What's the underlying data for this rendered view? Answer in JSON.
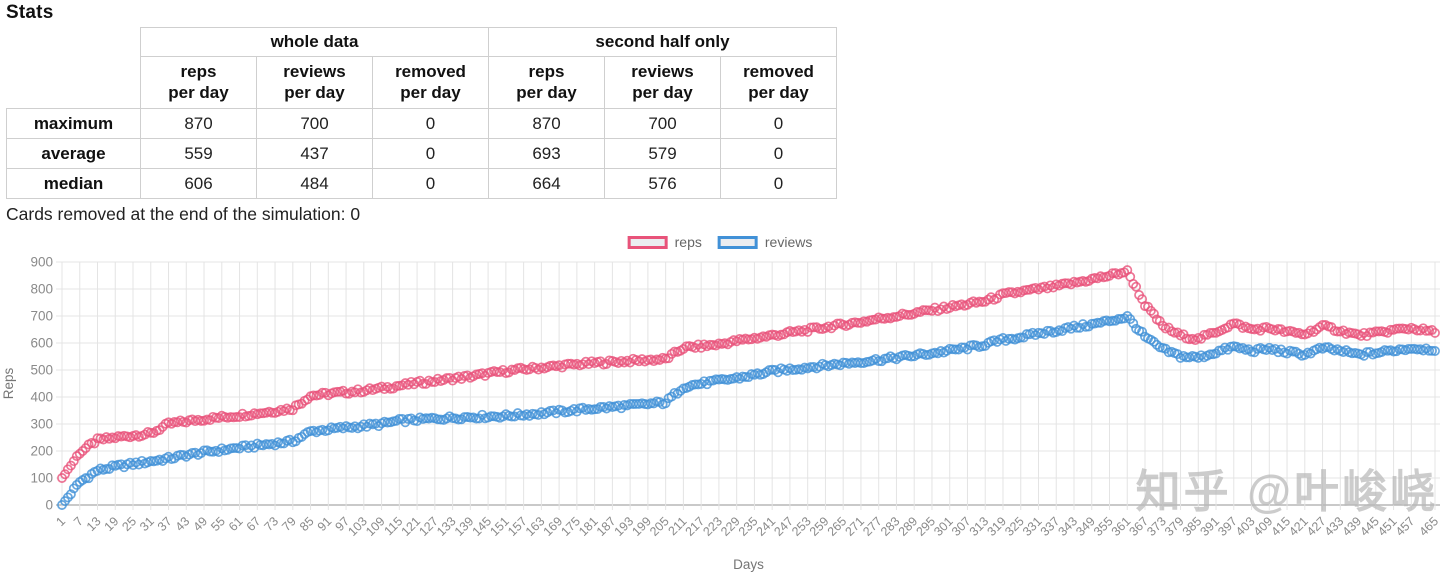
{
  "page": {
    "title": "Stats",
    "note": "Cards removed at the end of the simulation: 0",
    "watermark": "知乎 @叶峻峣"
  },
  "stats_table": {
    "groups": [
      "whole data",
      "second half only"
    ],
    "col_headers": [
      "reps\nper day",
      "reviews\nper day",
      "removed\nper day"
    ],
    "rows": [
      {
        "label": "maximum",
        "values": [
          870,
          700,
          0,
          870,
          700,
          0
        ]
      },
      {
        "label": "average",
        "values": [
          559,
          437,
          0,
          693,
          579,
          0
        ]
      },
      {
        "label": "median",
        "values": [
          606,
          484,
          0,
          664,
          576,
          0
        ]
      }
    ]
  },
  "chart_data": {
    "type": "scatter",
    "title": "",
    "xlabel": "Days",
    "ylabel": "Reps",
    "ylim": [
      0,
      900
    ],
    "y_tick_step": 100,
    "x_max": 465,
    "grid": true,
    "legend_position": "top",
    "x_tick_labels": [
      1,
      7,
      13,
      19,
      25,
      31,
      37,
      43,
      49,
      55,
      61,
      67,
      73,
      79,
      85,
      91,
      97,
      103,
      109,
      115,
      121,
      127,
      133,
      139,
      145,
      151,
      157,
      163,
      169,
      175,
      181,
      187,
      193,
      199,
      205,
      211,
      217,
      223,
      229,
      235,
      241,
      247,
      253,
      259,
      265,
      271,
      277,
      283,
      289,
      295,
      301,
      307,
      313,
      319,
      325,
      331,
      337,
      343,
      349,
      355,
      361,
      367,
      373,
      379,
      385,
      391,
      397,
      403,
      409,
      415,
      421,
      427,
      433,
      439,
      445,
      451,
      457,
      465
    ],
    "sampling_note": "one point per day in the original; values below are anchor readings every 6 days, daily points scatter around them",
    "series": [
      {
        "name": "reps",
        "color": "#e8537a",
        "max": 870,
        "points": [
          [
            1,
            100
          ],
          [
            7,
            195
          ],
          [
            13,
            240
          ],
          [
            19,
            250
          ],
          [
            25,
            258
          ],
          [
            31,
            264
          ],
          [
            37,
            300
          ],
          [
            43,
            310
          ],
          [
            49,
            318
          ],
          [
            55,
            325
          ],
          [
            61,
            332
          ],
          [
            67,
            340
          ],
          [
            73,
            348
          ],
          [
            79,
            358
          ],
          [
            85,
            405
          ],
          [
            91,
            412
          ],
          [
            97,
            418
          ],
          [
            103,
            424
          ],
          [
            109,
            432
          ],
          [
            115,
            442
          ],
          [
            121,
            452
          ],
          [
            127,
            460
          ],
          [
            133,
            468
          ],
          [
            139,
            476
          ],
          [
            145,
            486
          ],
          [
            151,
            496
          ],
          [
            157,
            503
          ],
          [
            163,
            509
          ],
          [
            169,
            515
          ],
          [
            175,
            521
          ],
          [
            181,
            526
          ],
          [
            187,
            530
          ],
          [
            193,
            534
          ],
          [
            199,
            537
          ],
          [
            205,
            540
          ],
          [
            211,
            582
          ],
          [
            217,
            588
          ],
          [
            223,
            595
          ],
          [
            229,
            608
          ],
          [
            235,
            618
          ],
          [
            241,
            628
          ],
          [
            247,
            638
          ],
          [
            253,
            648
          ],
          [
            259,
            658
          ],
          [
            265,
            668
          ],
          [
            271,
            678
          ],
          [
            277,
            690
          ],
          [
            283,
            700
          ],
          [
            289,
            710
          ],
          [
            295,
            722
          ],
          [
            301,
            733
          ],
          [
            307,
            744
          ],
          [
            313,
            755
          ],
          [
            319,
            778
          ],
          [
            325,
            790
          ],
          [
            331,
            800
          ],
          [
            337,
            810
          ],
          [
            343,
            822
          ],
          [
            349,
            836
          ],
          [
            355,
            850
          ],
          [
            361,
            866
          ],
          [
            367,
            742
          ],
          [
            373,
            662
          ],
          [
            379,
            628
          ],
          [
            385,
            614
          ],
          [
            391,
            642
          ],
          [
            397,
            672
          ],
          [
            403,
            650
          ],
          [
            409,
            655
          ],
          [
            415,
            641
          ],
          [
            421,
            633
          ],
          [
            427,
            662
          ],
          [
            433,
            646
          ],
          [
            439,
            629
          ],
          [
            445,
            636
          ],
          [
            451,
            648
          ],
          [
            457,
            655
          ],
          [
            465,
            640
          ]
        ]
      },
      {
        "name": "reviews",
        "color": "#4191d7",
        "max": 700,
        "points": [
          [
            1,
            0
          ],
          [
            7,
            85
          ],
          [
            13,
            128
          ],
          [
            19,
            142
          ],
          [
            25,
            152
          ],
          [
            31,
            162
          ],
          [
            37,
            172
          ],
          [
            43,
            185
          ],
          [
            49,
            195
          ],
          [
            55,
            204
          ],
          [
            61,
            212
          ],
          [
            67,
            220
          ],
          [
            73,
            228
          ],
          [
            79,
            236
          ],
          [
            85,
            272
          ],
          [
            91,
            280
          ],
          [
            97,
            287
          ],
          [
            103,
            293
          ],
          [
            109,
            300
          ],
          [
            115,
            312
          ],
          [
            121,
            316
          ],
          [
            127,
            320
          ],
          [
            133,
            323
          ],
          [
            139,
            326
          ],
          [
            145,
            328
          ],
          [
            151,
            330
          ],
          [
            157,
            335
          ],
          [
            163,
            340
          ],
          [
            169,
            346
          ],
          [
            175,
            352
          ],
          [
            181,
            358
          ],
          [
            187,
            363
          ],
          [
            193,
            368
          ],
          [
            199,
            374
          ],
          [
            205,
            380
          ],
          [
            211,
            438
          ],
          [
            217,
            450
          ],
          [
            223,
            460
          ],
          [
            229,
            470
          ],
          [
            235,
            482
          ],
          [
            241,
            495
          ],
          [
            247,
            503
          ],
          [
            253,
            510
          ],
          [
            259,
            517
          ],
          [
            265,
            524
          ],
          [
            271,
            531
          ],
          [
            277,
            538
          ],
          [
            283,
            546
          ],
          [
            289,
            554
          ],
          [
            295,
            562
          ],
          [
            301,
            572
          ],
          [
            307,
            582
          ],
          [
            313,
            595
          ],
          [
            319,
            612
          ],
          [
            325,
            622
          ],
          [
            331,
            635
          ],
          [
            337,
            646
          ],
          [
            343,
            658
          ],
          [
            349,
            668
          ],
          [
            355,
            682
          ],
          [
            361,
            697
          ],
          [
            367,
            622
          ],
          [
            373,
            576
          ],
          [
            379,
            551
          ],
          [
            385,
            546
          ],
          [
            391,
            566
          ],
          [
            397,
            586
          ],
          [
            403,
            571
          ],
          [
            409,
            578
          ],
          [
            415,
            566
          ],
          [
            421,
            558
          ],
          [
            427,
            581
          ],
          [
            433,
            571
          ],
          [
            439,
            557
          ],
          [
            445,
            563
          ],
          [
            451,
            573
          ],
          [
            457,
            581
          ],
          [
            465,
            576
          ]
        ]
      }
    ]
  }
}
